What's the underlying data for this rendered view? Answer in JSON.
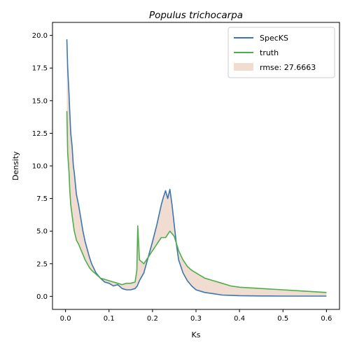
{
  "chart_data": {
    "type": "line",
    "title": "Populus trichocarpa",
    "xlabel": "Ks",
    "ylabel": "Density",
    "xlim": [
      -0.03,
      0.63
    ],
    "ylim": [
      -1.0,
      21.0
    ],
    "xticks": [
      "0.0",
      "0.1",
      "0.2",
      "0.3",
      "0.4",
      "0.5",
      "0.6"
    ],
    "yticks": [
      "0.0",
      "2.5",
      "5.0",
      "7.5",
      "10.0",
      "12.5",
      "15.0",
      "17.5",
      "20.0"
    ],
    "grid": false,
    "legend_position": "top-right",
    "series": [
      {
        "name": "SpecKS",
        "color": "#3a76b0",
        "x": [
          0.003,
          0.005,
          0.008,
          0.01,
          0.012,
          0.015,
          0.018,
          0.02,
          0.023,
          0.025,
          0.03,
          0.035,
          0.04,
          0.045,
          0.05,
          0.055,
          0.06,
          0.07,
          0.08,
          0.09,
          0.1,
          0.11,
          0.12,
          0.13,
          0.14,
          0.15,
          0.16,
          0.165,
          0.17,
          0.18,
          0.19,
          0.2,
          0.21,
          0.22,
          0.225,
          0.23,
          0.235,
          0.24,
          0.245,
          0.25,
          0.255,
          0.26,
          0.27,
          0.28,
          0.29,
          0.3,
          0.32,
          0.34,
          0.36,
          0.38,
          0.4,
          0.45,
          0.5,
          0.55,
          0.6
        ],
        "y": [
          19.7,
          17.5,
          15.5,
          14.0,
          12.5,
          11.5,
          10.0,
          9.5,
          8.5,
          7.8,
          7.0,
          6.0,
          5.0,
          4.2,
          3.6,
          3.0,
          2.5,
          1.8,
          1.4,
          1.1,
          1.0,
          0.8,
          0.9,
          0.6,
          0.5,
          0.5,
          0.6,
          0.8,
          1.2,
          1.8,
          3.0,
          4.2,
          5.5,
          7.0,
          7.6,
          8.1,
          7.5,
          8.2,
          7.0,
          5.5,
          4.0,
          2.8,
          1.8,
          1.2,
          0.8,
          0.5,
          0.3,
          0.2,
          0.1,
          0.08,
          0.05,
          0.03,
          0.02,
          0.02,
          0.02
        ]
      },
      {
        "name": "truth",
        "color": "#4daf4a",
        "x": [
          0.003,
          0.005,
          0.008,
          0.01,
          0.012,
          0.015,
          0.018,
          0.02,
          0.023,
          0.025,
          0.03,
          0.035,
          0.04,
          0.045,
          0.05,
          0.055,
          0.06,
          0.07,
          0.08,
          0.09,
          0.1,
          0.11,
          0.12,
          0.13,
          0.14,
          0.15,
          0.16,
          0.164,
          0.166,
          0.17,
          0.18,
          0.19,
          0.2,
          0.21,
          0.22,
          0.23,
          0.24,
          0.25,
          0.26,
          0.27,
          0.28,
          0.29,
          0.3,
          0.32,
          0.34,
          0.36,
          0.38,
          0.4,
          0.45,
          0.5,
          0.55,
          0.6
        ],
        "y": [
          14.2,
          11.0,
          9.5,
          8.0,
          7.0,
          6.2,
          5.5,
          5.0,
          4.6,
          4.3,
          4.0,
          3.6,
          3.2,
          2.8,
          2.5,
          2.2,
          2.0,
          1.7,
          1.4,
          1.3,
          1.2,
          1.1,
          1.0,
          0.9,
          1.0,
          1.0,
          1.1,
          2.0,
          5.4,
          2.8,
          2.5,
          3.0,
          3.5,
          4.0,
          4.5,
          4.5,
          5.0,
          4.6,
          3.5,
          2.8,
          2.3,
          2.0,
          1.8,
          1.4,
          1.2,
          1.0,
          0.8,
          0.7,
          0.6,
          0.5,
          0.4,
          0.3
        ]
      }
    ],
    "fill": {
      "label": "rmse: 27.6663",
      "color": "#d9a78a",
      "between": [
        "SpecKS",
        "truth"
      ]
    }
  }
}
